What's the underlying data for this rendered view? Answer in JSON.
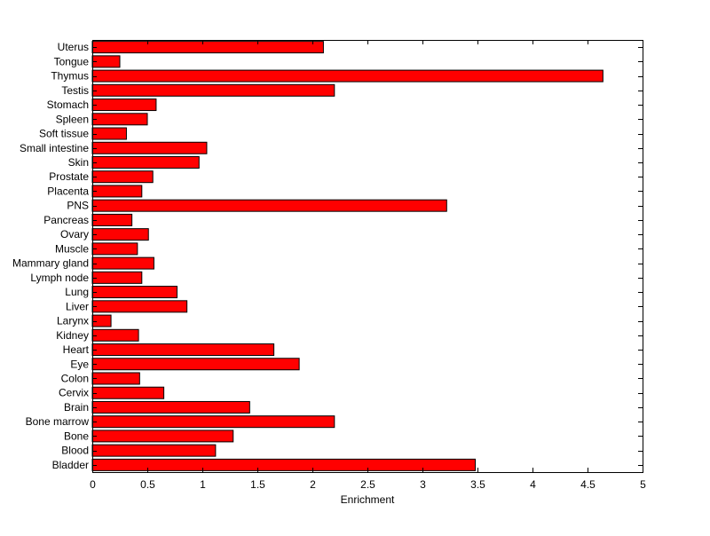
{
  "chart_data": {
    "type": "bar",
    "orientation": "horizontal",
    "title": "",
    "xlabel": "Enrichment",
    "ylabel": "",
    "xlim": [
      0,
      5
    ],
    "xticks": [
      0,
      0.5,
      1,
      1.5,
      2,
      2.5,
      3,
      3.5,
      4,
      4.5,
      5
    ],
    "xtick_labels": [
      "0",
      "0.5",
      "1",
      "1.5",
      "2",
      "2.5",
      "3",
      "3.5",
      "4",
      "4.5",
      "5"
    ],
    "grid": false,
    "legend": "none",
    "bar_color": "#ff0000",
    "categories": [
      "Bladder",
      "Blood",
      "Bone",
      "Bone marrow",
      "Brain",
      "Cervix",
      "Colon",
      "Eye",
      "Heart",
      "Kidney",
      "Larynx",
      "Liver",
      "Lung",
      "Lymph node",
      "Mammary gland",
      "Muscle",
      "Ovary",
      "Pancreas",
      "PNS",
      "Placenta",
      "Prostate",
      "Skin",
      "Small intestine",
      "Soft tissue",
      "Spleen",
      "Stomach",
      "Testis",
      "Thymus",
      "Tongue",
      "Uterus"
    ],
    "values": [
      3.48,
      1.12,
      1.28,
      2.2,
      1.43,
      0.65,
      0.43,
      1.88,
      1.65,
      0.42,
      0.17,
      0.86,
      0.77,
      0.45,
      0.56,
      0.41,
      0.51,
      0.36,
      3.22,
      0.45,
      0.55,
      0.97,
      1.04,
      0.31,
      0.5,
      0.58,
      2.2,
      4.64,
      0.25,
      2.1
    ]
  }
}
